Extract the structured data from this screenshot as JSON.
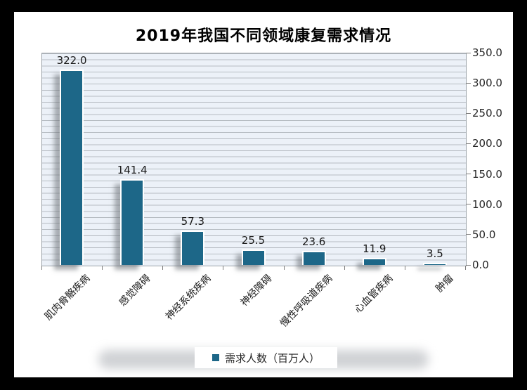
{
  "window": {
    "frame_color": "#000000",
    "background_color": "#ffffff"
  },
  "title": "2019年我国不同领域康复需求情况",
  "legend": {
    "label": "需求人数（百万人）",
    "marker_color": "#1d6788",
    "marker_icon": "square-icon"
  },
  "chart_data": {
    "type": "bar",
    "title": "2019年我国不同领域康复需求情况",
    "categories": [
      "肌肉骨骼疾病",
      "感觉障碍",
      "神经系统疾病",
      "神经障碍",
      "慢性呼吸道疾病",
      "心血管疾病",
      "肿瘤"
    ],
    "values": [
      322.0,
      141.4,
      57.3,
      25.5,
      23.6,
      11.9,
      3.5
    ],
    "value_labels": [
      "322.0",
      "141.4",
      "57.3",
      "25.5",
      "23.6",
      "11.9",
      "3.5"
    ],
    "series_name": "需求人数（百万人）",
    "xlabel": "",
    "ylabel": "",
    "ylim": [
      0,
      350
    ],
    "y_major_unit": 50,
    "y_minor_unit": 10,
    "y_tick_labels": [
      "0.0",
      "50.0",
      "100.0",
      "150.0",
      "200.0",
      "250.0",
      "300.0",
      "350.0"
    ],
    "value_axis_side": "right",
    "grid": "minor-horizontal",
    "legend_position": "bottom",
    "bar_color": "#1d6788",
    "plot_background_color": "#ecf1f8",
    "gridline_color": "#b6bcc2",
    "axis_color": "#7f7f7f",
    "category_label_rotation_deg": 45
  }
}
